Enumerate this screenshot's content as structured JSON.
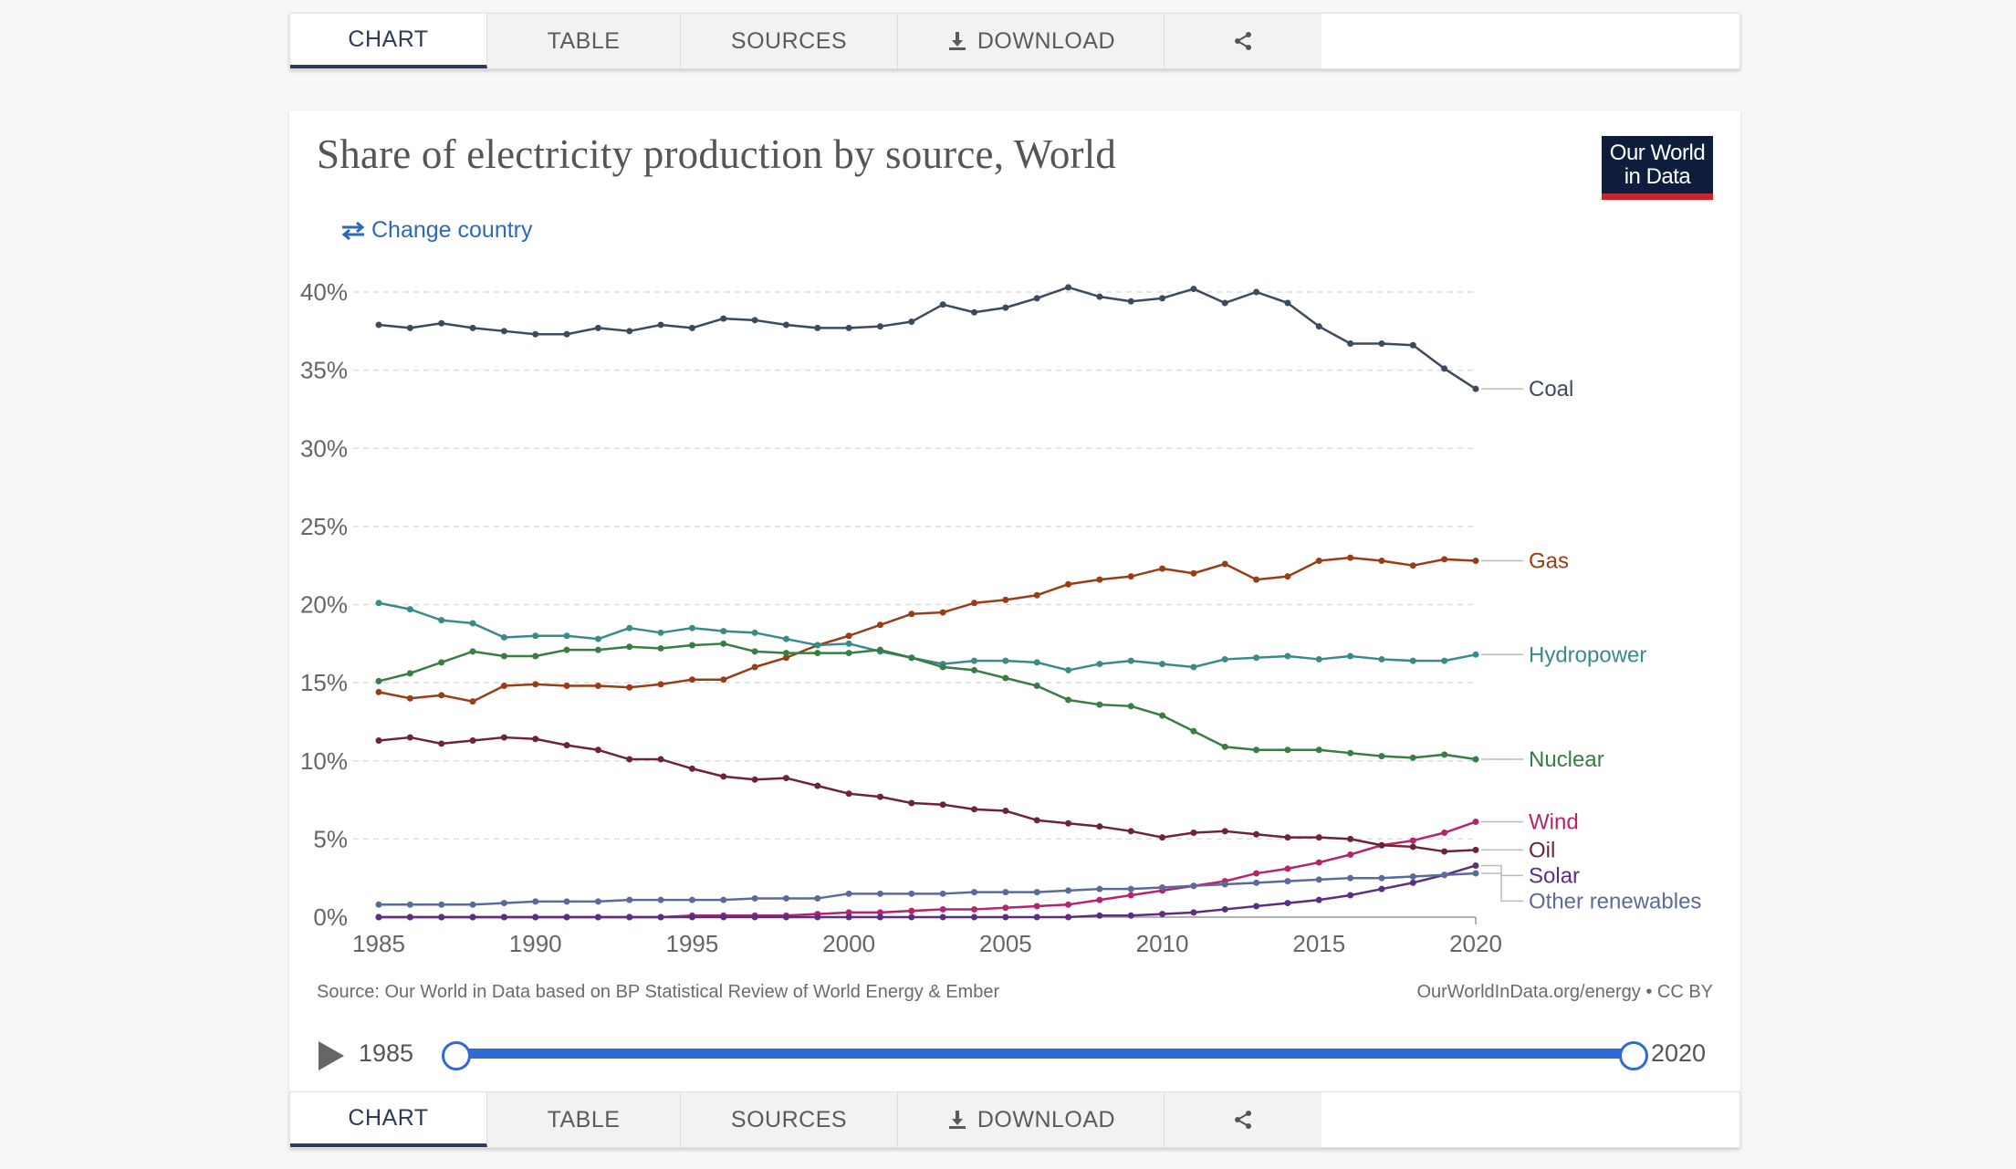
{
  "tabs": [
    {
      "label": "CHART",
      "icon": ""
    },
    {
      "label": "TABLE",
      "icon": ""
    },
    {
      "label": "SOURCES",
      "icon": ""
    },
    {
      "label": "DOWNLOAD",
      "icon": "download-icon"
    },
    {
      "label": "",
      "icon": "share-icon"
    }
  ],
  "active_tab": "CHART",
  "title": "Share of electricity production by source, World",
  "logo": {
    "line1": "Our World",
    "line2": "in Data"
  },
  "change_country": "Change country",
  "source": "Source: Our World in Data based on BP Statistical Review of World Energy & Ember",
  "license": "OurWorldInData.org/energy • CC BY",
  "timeline": {
    "start": "1985",
    "end": "2020",
    "fill": 1.0
  },
  "colors": {
    "Coal": "#3c4a5e",
    "Gas": "#9a3d16",
    "Hydropower": "#3a8a8a",
    "Nuclear": "#3a7d44",
    "Wind": "#b5246c",
    "Oil": "#6b2534",
    "Solar": "#5b2e82",
    "Other renewables": "#5b6a9a",
    "accent": "#2e6ad6",
    "logo_bg": "#0f1d3d",
    "logo_bar": "#c8232c"
  },
  "chart_data": {
    "type": "line",
    "title": "Share of electricity production by source, World",
    "xlabel": "",
    "ylabel": "",
    "x": [
      1985,
      1986,
      1987,
      1988,
      1989,
      1990,
      1991,
      1992,
      1993,
      1994,
      1995,
      1996,
      1997,
      1998,
      1999,
      2000,
      2001,
      2002,
      2003,
      2004,
      2005,
      2006,
      2007,
      2008,
      2009,
      2010,
      2011,
      2012,
      2013,
      2014,
      2015,
      2016,
      2017,
      2018,
      2019,
      2020
    ],
    "xlim": [
      1985,
      2020
    ],
    "ylim": [
      0,
      40
    ],
    "xticks": [
      "1985",
      "1990",
      "1995",
      "2000",
      "2005",
      "2010",
      "2015",
      "2020"
    ],
    "yticks": [
      "0%",
      "5%",
      "10%",
      "15%",
      "20%",
      "25%",
      "30%",
      "35%",
      "40%"
    ],
    "grid": "horizontal dashed",
    "legend": "right (line-end labels)",
    "series": [
      {
        "name": "Coal",
        "values": [
          37.9,
          37.7,
          38.0,
          37.7,
          37.5,
          37.3,
          37.3,
          37.7,
          37.5,
          37.9,
          37.7,
          38.3,
          38.2,
          37.9,
          37.7,
          37.7,
          37.8,
          38.1,
          39.2,
          38.7,
          39.0,
          39.6,
          40.3,
          39.7,
          39.4,
          39.6,
          40.2,
          39.3,
          40.0,
          39.3,
          37.8,
          36.7,
          36.7,
          36.6,
          35.1,
          33.8
        ]
      },
      {
        "name": "Gas",
        "values": [
          14.4,
          14.0,
          14.2,
          13.8,
          14.8,
          14.9,
          14.8,
          14.8,
          14.7,
          14.9,
          15.2,
          15.2,
          16.0,
          16.6,
          17.4,
          18.0,
          18.7,
          19.4,
          19.5,
          20.1,
          20.3,
          20.6,
          21.3,
          21.6,
          21.8,
          22.3,
          22.0,
          22.6,
          21.6,
          21.8,
          22.8,
          23.0,
          22.8,
          22.5,
          22.9,
          22.8
        ]
      },
      {
        "name": "Hydropower",
        "values": [
          20.1,
          19.7,
          19.0,
          18.8,
          17.9,
          18.0,
          18.0,
          17.8,
          18.5,
          18.2,
          18.5,
          18.3,
          18.2,
          17.8,
          17.4,
          17.5,
          17.0,
          16.6,
          16.2,
          16.4,
          16.4,
          16.3,
          15.8,
          16.2,
          16.4,
          16.2,
          16.0,
          16.5,
          16.6,
          16.7,
          16.5,
          16.7,
          16.5,
          16.4,
          16.4,
          16.8
        ]
      },
      {
        "name": "Nuclear",
        "values": [
          15.1,
          15.6,
          16.3,
          17.0,
          16.7,
          16.7,
          17.1,
          17.1,
          17.3,
          17.2,
          17.4,
          17.5,
          17.0,
          16.9,
          16.9,
          16.9,
          17.1,
          16.6,
          16.0,
          15.8,
          15.3,
          14.8,
          13.9,
          13.6,
          13.5,
          12.9,
          11.9,
          10.9,
          10.7,
          10.7,
          10.7,
          10.5,
          10.3,
          10.2,
          10.4,
          10.1
        ]
      },
      {
        "name": "Wind",
        "values": [
          0.0,
          0.0,
          0.0,
          0.0,
          0.0,
          0.0,
          0.0,
          0.0,
          0.0,
          0.0,
          0.1,
          0.1,
          0.1,
          0.1,
          0.2,
          0.3,
          0.3,
          0.4,
          0.5,
          0.5,
          0.6,
          0.7,
          0.8,
          1.1,
          1.4,
          1.7,
          2.0,
          2.3,
          2.8,
          3.1,
          3.5,
          4.0,
          4.6,
          4.9,
          5.4,
          6.1
        ]
      },
      {
        "name": "Oil",
        "values": [
          11.3,
          11.5,
          11.1,
          11.3,
          11.5,
          11.4,
          11.0,
          10.7,
          10.1,
          10.1,
          9.5,
          9.0,
          8.8,
          8.9,
          8.4,
          7.9,
          7.7,
          7.3,
          7.2,
          6.9,
          6.8,
          6.2,
          6.0,
          5.8,
          5.5,
          5.1,
          5.4,
          5.5,
          5.3,
          5.1,
          5.1,
          5.0,
          4.6,
          4.5,
          4.2,
          4.3
        ]
      },
      {
        "name": "Solar",
        "values": [
          0.0,
          0.0,
          0.0,
          0.0,
          0.0,
          0.0,
          0.0,
          0.0,
          0.0,
          0.0,
          0.0,
          0.0,
          0.0,
          0.0,
          0.0,
          0.0,
          0.0,
          0.0,
          0.0,
          0.0,
          0.0,
          0.0,
          0.0,
          0.1,
          0.1,
          0.2,
          0.3,
          0.5,
          0.7,
          0.9,
          1.1,
          1.4,
          1.8,
          2.2,
          2.7,
          3.3
        ]
      },
      {
        "name": "Other renewables",
        "values": [
          0.8,
          0.8,
          0.8,
          0.8,
          0.9,
          1.0,
          1.0,
          1.0,
          1.1,
          1.1,
          1.1,
          1.1,
          1.2,
          1.2,
          1.2,
          1.5,
          1.5,
          1.5,
          1.5,
          1.6,
          1.6,
          1.6,
          1.7,
          1.8,
          1.8,
          1.9,
          2.0,
          2.1,
          2.2,
          2.3,
          2.4,
          2.5,
          2.5,
          2.6,
          2.7,
          2.8
        ]
      }
    ]
  }
}
